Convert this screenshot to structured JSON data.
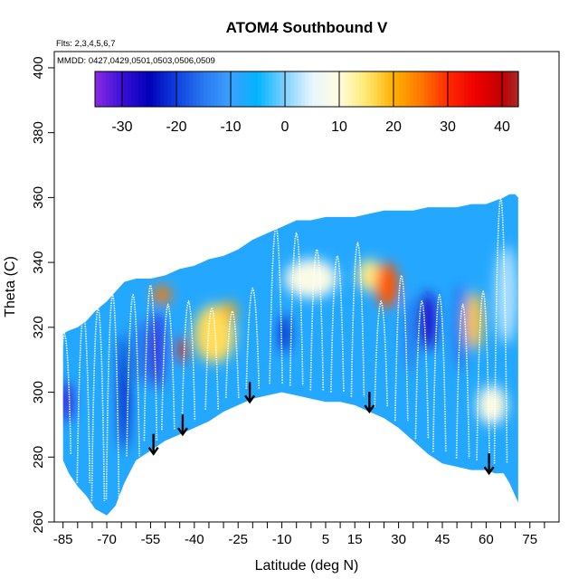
{
  "chart_data": {
    "type": "heatmap",
    "title": "ATOM4 Southbound V",
    "annotations": {
      "flights": "Flts: 2,3,4,5,6,7",
      "dates": "MMDD: 0427,0429,0501,0503,0506,0509"
    },
    "xlabel": "Latitude (deg N)",
    "ylabel": "Theta (C)",
    "xlim": [
      -88,
      85
    ],
    "ylim": [
      260,
      405
    ],
    "x_ticks": [
      -85,
      -70,
      -55,
      -40,
      -25,
      -10,
      5,
      15,
      30,
      45,
      60,
      75
    ],
    "x_tick_labels": [
      "-85",
      "-70",
      "-55",
      "-40",
      "-25",
      "-10",
      "5",
      "15",
      "30",
      "45",
      "60",
      "75"
    ],
    "y_ticks": [
      260,
      280,
      300,
      320,
      340,
      360,
      380,
      400
    ],
    "y_tick_labels": [
      "260",
      "280",
      "300",
      "320",
      "340",
      "360",
      "380",
      "400"
    ],
    "colorbar": {
      "vmin": -35,
      "vmax": 43,
      "ticks": [
        -30,
        -20,
        -10,
        0,
        10,
        20,
        30,
        40
      ],
      "tick_labels": [
        "-30",
        "-20",
        "-10",
        "0",
        "10",
        "20",
        "30",
        "40"
      ],
      "stops": [
        {
          "v": -35,
          "color": "#8a2be2"
        },
        {
          "v": -30,
          "color": "#3a10d8"
        },
        {
          "v": -25,
          "color": "#0000b8"
        },
        {
          "v": -20,
          "color": "#1040e0"
        },
        {
          "v": -15,
          "color": "#2878f0"
        },
        {
          "v": -10,
          "color": "#3ca0ff"
        },
        {
          "v": -5,
          "color": "#00b4ff"
        },
        {
          "v": 0,
          "color": "#80d0ff"
        },
        {
          "v": 5,
          "color": "#e8f6ff"
        },
        {
          "v": 10,
          "color": "#fffce0"
        },
        {
          "v": 15,
          "color": "#ffe870"
        },
        {
          "v": 20,
          "color": "#ffb000"
        },
        {
          "v": 25,
          "color": "#ff7800"
        },
        {
          "v": 30,
          "color": "#ff2a00"
        },
        {
          "v": 35,
          "color": "#f00000"
        },
        {
          "v": 40,
          "color": "#c00000"
        },
        {
          "v": 43,
          "color": "#a82a2a"
        }
      ]
    },
    "background_value": -8,
    "coverage_envelope": [
      {
        "lat": -85,
        "bottom": 279,
        "top": 318
      },
      {
        "lat": -83,
        "bottom": 275,
        "top": 319
      },
      {
        "lat": -80,
        "bottom": 271,
        "top": 320
      },
      {
        "lat": -77,
        "bottom": 268,
        "top": 322
      },
      {
        "lat": -74,
        "bottom": 264,
        "top": 325
      },
      {
        "lat": -70,
        "bottom": 262,
        "top": 328
      },
      {
        "lat": -67,
        "bottom": 265,
        "top": 331
      },
      {
        "lat": -64,
        "bottom": 272,
        "top": 334
      },
      {
        "lat": -60,
        "bottom": 279,
        "top": 335
      },
      {
        "lat": -55,
        "bottom": 282,
        "top": 335
      },
      {
        "lat": -50,
        "bottom": 285,
        "top": 336
      },
      {
        "lat": -45,
        "bottom": 287,
        "top": 338
      },
      {
        "lat": -40,
        "bottom": 289,
        "top": 339
      },
      {
        "lat": -35,
        "bottom": 291,
        "top": 341
      },
      {
        "lat": -30,
        "bottom": 294,
        "top": 342
      },
      {
        "lat": -25,
        "bottom": 296,
        "top": 344
      },
      {
        "lat": -20,
        "bottom": 298,
        "top": 347
      },
      {
        "lat": -15,
        "bottom": 299,
        "top": 349
      },
      {
        "lat": -10,
        "bottom": 300,
        "top": 351
      },
      {
        "lat": -5,
        "bottom": 299,
        "top": 353
      },
      {
        "lat": 0,
        "bottom": 298,
        "top": 353
      },
      {
        "lat": 5,
        "bottom": 297,
        "top": 354
      },
      {
        "lat": 10,
        "bottom": 297,
        "top": 354
      },
      {
        "lat": 15,
        "bottom": 296,
        "top": 354
      },
      {
        "lat": 20,
        "bottom": 294,
        "top": 355
      },
      {
        "lat": 25,
        "bottom": 292,
        "top": 356
      },
      {
        "lat": 30,
        "bottom": 289,
        "top": 356
      },
      {
        "lat": 35,
        "bottom": 285,
        "top": 356
      },
      {
        "lat": 40,
        "bottom": 281,
        "top": 357
      },
      {
        "lat": 45,
        "bottom": 278,
        "top": 357
      },
      {
        "lat": 50,
        "bottom": 277,
        "top": 357
      },
      {
        "lat": 55,
        "bottom": 276,
        "top": 358
      },
      {
        "lat": 60,
        "bottom": 276,
        "top": 358
      },
      {
        "lat": 63,
        "bottom": 275,
        "top": 359
      },
      {
        "lat": 66,
        "bottom": 275,
        "top": 360
      },
      {
        "lat": 68,
        "bottom": 272,
        "top": 361
      },
      {
        "lat": 70,
        "bottom": 268,
        "top": 361
      },
      {
        "lat": 71,
        "bottom": 266,
        "top": 360
      }
    ],
    "anomalies": [
      {
        "lat": -84,
        "theta": 297,
        "value": -30,
        "lat_spread": 2,
        "theta_spread": 6
      },
      {
        "lat": -64,
        "theta": 300,
        "value": -25,
        "lat_spread": 1.5,
        "theta_spread": 18
      },
      {
        "lat": -58,
        "theta": 312,
        "value": -15,
        "lat_spread": 3,
        "theta_spread": 10
      },
      {
        "lat": -53,
        "theta": 313,
        "value": -30,
        "lat_spread": 2,
        "theta_spread": 12
      },
      {
        "lat": -51,
        "theta": 330,
        "value": 25,
        "lat_spread": 3,
        "theta_spread": 3
      },
      {
        "lat": -44,
        "theta": 313,
        "value": 32,
        "lat_spread": 1.5,
        "theta_spread": 4
      },
      {
        "lat": -33,
        "theta": 318,
        "value": 16,
        "lat_spread": 7,
        "theta_spread": 9
      },
      {
        "lat": -28,
        "theta": 325,
        "value": 20,
        "lat_spread": 2.5,
        "theta_spread": 3
      },
      {
        "lat": -9,
        "theta": 318,
        "value": -25,
        "lat_spread": 1.5,
        "theta_spread": 6
      },
      {
        "lat": 0,
        "theta": 335,
        "value": 9,
        "lat_spread": 9,
        "theta_spread": 6
      },
      {
        "lat": 20,
        "theta": 336,
        "value": 14,
        "lat_spread": 4,
        "theta_spread": 5
      },
      {
        "lat": 26,
        "theta": 333,
        "value": 27,
        "lat_spread": 4,
        "theta_spread": 7
      },
      {
        "lat": 40,
        "theta": 322,
        "value": -28,
        "lat_spread": 3,
        "theta_spread": 9
      },
      {
        "lat": 34,
        "theta": 318,
        "value": -15,
        "lat_spread": 2,
        "theta_spread": 12
      },
      {
        "lat": 51,
        "theta": 320,
        "value": -15,
        "lat_spread": 2.5,
        "theta_spread": 14
      },
      {
        "lat": 56,
        "theta": 322,
        "value": 18,
        "lat_spread": 3,
        "theta_spread": 9
      },
      {
        "lat": 62,
        "theta": 296,
        "value": 10,
        "lat_spread": 5,
        "theta_spread": 6
      },
      {
        "lat": 67,
        "theta": 330,
        "value": 2,
        "lat_spread": 4,
        "theta_spread": 15
      }
    ],
    "profiles": [
      {
        "lat": -84.5,
        "top": 318
      },
      {
        "lat": -78,
        "top": 324
      },
      {
        "lat": -73,
        "top": 326
      },
      {
        "lat": -68,
        "top": 330
      },
      {
        "lat": -61,
        "top": 330
      },
      {
        "lat": -55,
        "top": 333
      },
      {
        "lat": -49,
        "top": 327
      },
      {
        "lat": -42,
        "top": 328
      },
      {
        "lat": -34,
        "top": 326
      },
      {
        "lat": -27,
        "top": 325
      },
      {
        "lat": -20,
        "top": 332
      },
      {
        "lat": -12,
        "top": 351
      },
      {
        "lat": -5,
        "top": 349
      },
      {
        "lat": 2,
        "top": 344
      },
      {
        "lat": 9,
        "top": 342
      },
      {
        "lat": 16,
        "top": 346
      },
      {
        "lat": 24,
        "top": 328
      },
      {
        "lat": 31,
        "top": 336
      },
      {
        "lat": 38,
        "top": 328
      },
      {
        "lat": 44,
        "top": 330
      },
      {
        "lat": 52,
        "top": 327
      },
      {
        "lat": 59,
        "top": 331
      },
      {
        "lat": 65,
        "top": 360
      }
    ],
    "arrows": [
      {
        "lat": -54,
        "theta": 281
      },
      {
        "lat": -44,
        "theta": 287
      },
      {
        "lat": -21,
        "theta": 297
      },
      {
        "lat": 20,
        "theta": 294
      },
      {
        "lat": 61,
        "theta": 275
      }
    ]
  }
}
